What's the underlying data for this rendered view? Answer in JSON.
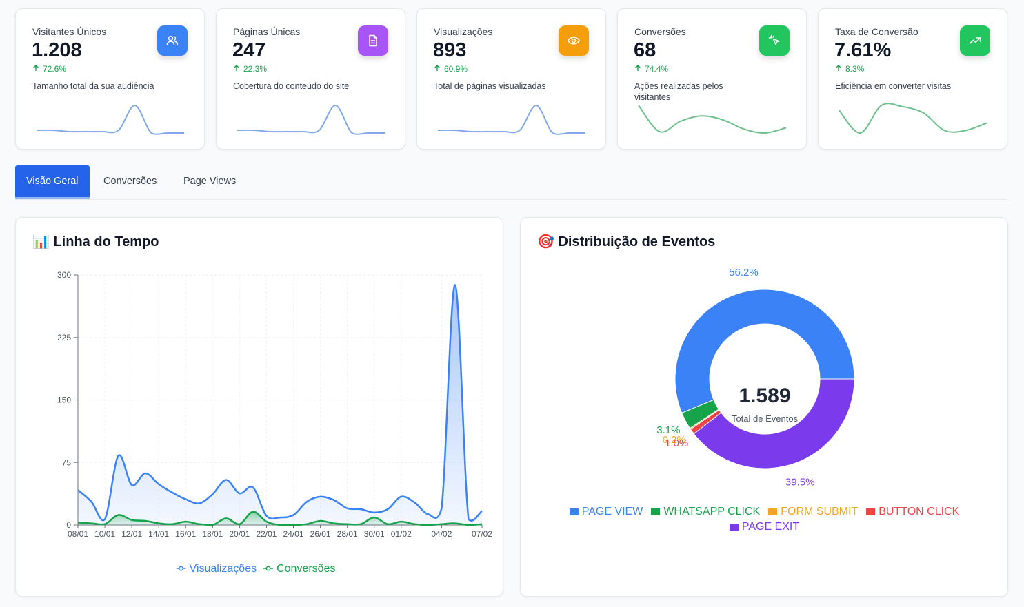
{
  "kpis": [
    {
      "title": "Visitantes Únicos",
      "value": "1.208",
      "change": "72.6%",
      "description": "Tamanho total da sua audiência",
      "color": "#3b82f6",
      "trend_color": "#7fa8ea",
      "trend": [
        12,
        12,
        11,
        11,
        11,
        12,
        30,
        10,
        10,
        10
      ]
    },
    {
      "title": "Páginas Únicas",
      "value": "247",
      "change": "22.3%",
      "description": "Cobertura do conteúdo do site",
      "color": "#a855f7",
      "trend_color": "#7fa8ea",
      "trend": [
        12,
        12,
        11,
        11,
        11,
        12,
        30,
        10,
        10,
        10
      ]
    },
    {
      "title": "Visualizações",
      "value": "893",
      "change": "60.9%",
      "description": "Total de páginas visualizadas",
      "color": "#f59e0b",
      "trend_color": "#7fa8ea",
      "trend": [
        12,
        12,
        11,
        11,
        11,
        12,
        30,
        10,
        10,
        10
      ]
    },
    {
      "title": "Conversões",
      "value": "68",
      "change": "74.4%",
      "description": "Ações realizadas pelos visitantes",
      "color": "#22c55e",
      "trend_color": "#6cc08b",
      "trend": [
        28,
        8,
        16,
        20,
        17,
        10,
        7,
        11
      ]
    },
    {
      "title": "Taxa de Conversão",
      "value": "7.61%",
      "change": "8.3%",
      "description": "Eficiência em converter visitas",
      "color": "#22c55e",
      "trend_color": "#6cc08b",
      "trend": [
        24,
        6,
        28,
        27,
        22,
        8,
        8,
        14
      ]
    }
  ],
  "tabs": [
    "Visão Geral",
    "Conversões",
    "Page Views"
  ],
  "chart_data": [
    {
      "type": "line",
      "title": "📊 Linha do Tempo",
      "categories": [
        "08/01",
        null,
        "10/01",
        null,
        "12/01",
        null,
        "14/01",
        null,
        "16/01",
        null,
        "18/01",
        null,
        "20/01",
        null,
        "22/01",
        null,
        "24/01",
        null,
        "26/01",
        null,
        "28/01",
        null,
        "30/01",
        null,
        "01/02",
        null,
        null,
        "04/02",
        null,
        null,
        "07/02"
      ],
      "series": [
        {
          "name": "Visualizações",
          "color": "#3b82f6",
          "values": [
            42,
            28,
            7,
            83,
            48,
            62,
            49,
            39,
            31,
            26,
            37,
            54,
            38,
            45,
            11,
            9,
            12,
            28,
            34,
            30,
            20,
            19,
            15,
            19,
            34,
            27,
            13,
            20,
            288,
            7,
            17
          ]
        },
        {
          "name": "Conversões",
          "color": "#16a34a",
          "values": [
            3,
            2,
            1,
            12,
            6,
            5,
            2,
            1,
            4,
            1,
            0,
            8,
            1,
            16,
            4,
            0,
            0,
            1,
            5,
            2,
            1,
            1,
            9,
            1,
            4,
            1,
            0,
            1,
            2,
            0,
            1
          ]
        }
      ],
      "ylim": [
        0,
        300
      ],
      "yticks": [
        0,
        75,
        150,
        225,
        300
      ],
      "grid": true
    },
    {
      "type": "pie",
      "title": "🎯 Distribuição de Eventos",
      "categories": [
        "PAGE VIEW",
        "WHATSAPP CLICK",
        "FORM SUBMIT",
        "BUTTON CLICK",
        "PAGE EXIT"
      ],
      "values": [
        56.2,
        3.1,
        0.2,
        1.0,
        39.5
      ],
      "value_labels": [
        "56.2%",
        "3.1%",
        "0.2%",
        "1.0%",
        "39.5%"
      ],
      "colors": [
        "#3b82f6",
        "#16a34a",
        "#f5a524",
        "#ef4444",
        "#7c3aed"
      ],
      "center_value": "1.589",
      "center_label": "Total de Eventos"
    }
  ]
}
